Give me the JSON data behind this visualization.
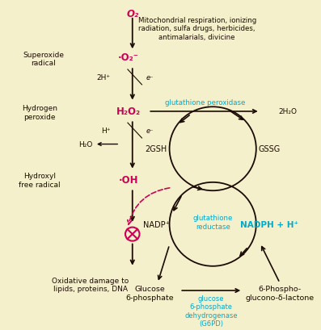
{
  "background_color": "#f5f0cc",
  "fig_width": 3.97,
  "fig_height": 4.1,
  "dpi": 100,
  "dark_color": "#1a0a00",
  "red_color": "#cc0055",
  "cyan_color": "#00aacc",
  "texts": {
    "O2_top": "O₂",
    "mitochondrial": "Mitochondrial respiration, ionizing\nradiation, sulfa drugs, herbicides,\nantimalarials, divicine",
    "superoxide_label": "Superoxide\nradical",
    "superoxide_formula": "·O₂⁻",
    "2H_plus": "2H⁺",
    "e_minus1": "e⁻",
    "hydrogen_label": "Hydrogen\nperoxide",
    "H2O2": "H₂O₂",
    "glutathione_peroxidase": "glutathione peroxidase",
    "2H2O": "2H₂O",
    "H_plus2": "H⁺",
    "e_minus2": "e⁻",
    "H2O": "H₂O",
    "2GSH": "2GSH",
    "GSSG": "GSSG",
    "hydroxyl_label": "Hydroxyl\nfree radical",
    "OH": "·OH",
    "glutathione_reductase": "glutathione\nreductase",
    "NADP_plus": "NADP⁺",
    "NADPH": "NADPH + H⁺",
    "oxidative_damage": "Oxidative damage to\nlipids, proteins, DNA",
    "glucose_6p": "Glucose\n6-phosphate",
    "G6PD_label": "glucose\n6-phosphate\ndehydrogenase\n(G6PD)",
    "phospho_lactone": "6-Phospho-\nglucono-δ-lactone"
  }
}
